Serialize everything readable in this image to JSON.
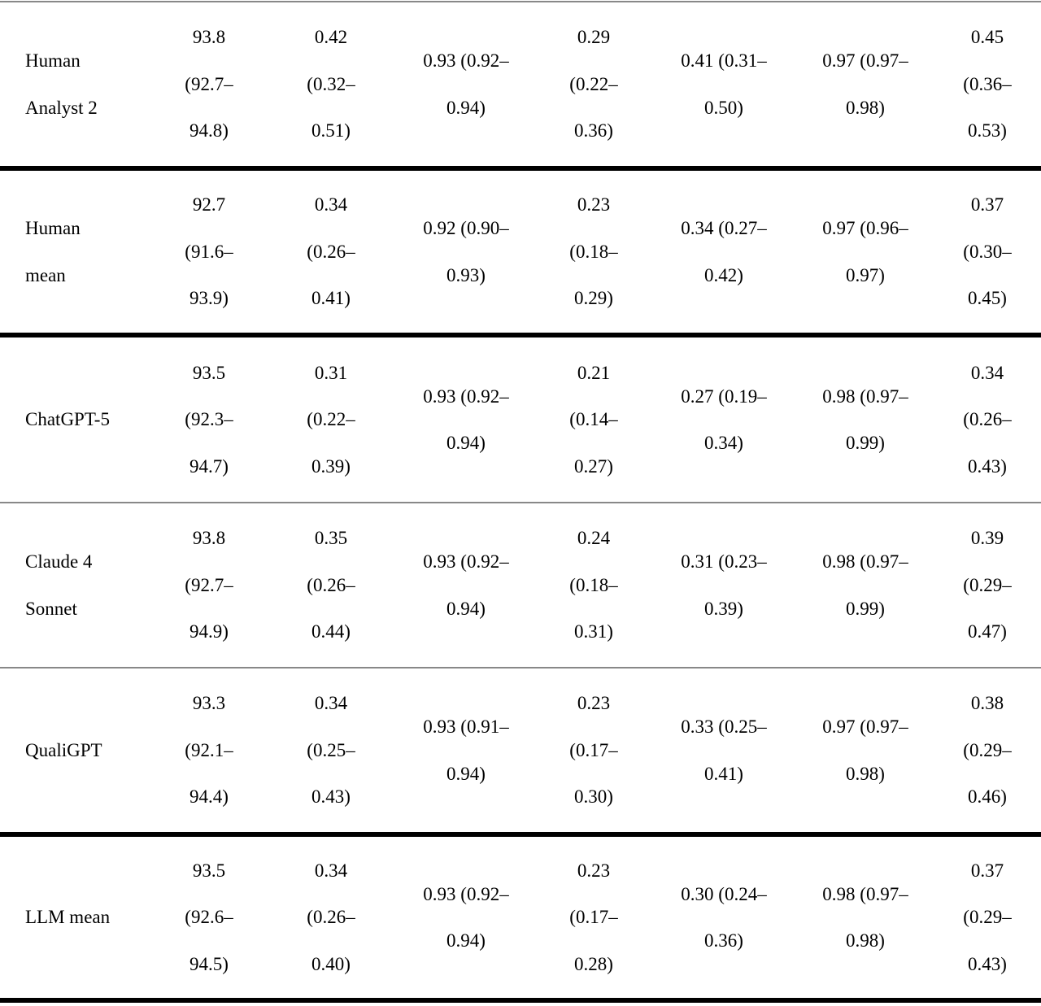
{
  "table": {
    "rows": [
      {
        "label": [
          "Human",
          "Analyst 2"
        ],
        "cells": [
          [
            "93.8",
            "(92.7–",
            "94.8)"
          ],
          [
            "0.42",
            "(0.32–",
            "0.51)"
          ],
          [
            "0.93 (0.92–",
            "0.94)"
          ],
          [
            "0.29",
            "(0.22–",
            "0.36)"
          ],
          [
            "0.41 (0.31–",
            "0.50)"
          ],
          [
            "0.97 (0.97–",
            "0.98)"
          ],
          [
            "0.45",
            "(0.36–",
            "0.53)"
          ]
        ]
      },
      {
        "label": [
          "Human",
          "mean"
        ],
        "cells": [
          [
            "92.7",
            "(91.6–",
            "93.9)"
          ],
          [
            "0.34",
            "(0.26–",
            "0.41)"
          ],
          [
            "0.92 (0.90–",
            "0.93)"
          ],
          [
            "0.23",
            "(0.18–",
            "0.29)"
          ],
          [
            "0.34 (0.27–",
            "0.42)"
          ],
          [
            "0.97 (0.96–",
            "0.97)"
          ],
          [
            "0.37",
            "(0.30–",
            "0.45)"
          ]
        ]
      },
      {
        "label": [
          "ChatGPT-5"
        ],
        "cells": [
          [
            "93.5",
            "(92.3–",
            "94.7)"
          ],
          [
            "0.31",
            "(0.22–",
            "0.39)"
          ],
          [
            "0.93 (0.92–",
            "0.94)"
          ],
          [
            "0.21",
            "(0.14–",
            "0.27)"
          ],
          [
            "0.27 (0.19–",
            "0.34)"
          ],
          [
            "0.98 (0.97–",
            "0.99)"
          ],
          [
            "0.34",
            "(0.26–",
            "0.43)"
          ]
        ]
      },
      {
        "label": [
          "Claude 4",
          "Sonnet"
        ],
        "cells": [
          [
            "93.8",
            "(92.7–",
            "94.9)"
          ],
          [
            "0.35",
            "(0.26–",
            "0.44)"
          ],
          [
            "0.93 (0.92–",
            "0.94)"
          ],
          [
            "0.24",
            "(0.18–",
            "0.31)"
          ],
          [
            "0.31 (0.23–",
            "0.39)"
          ],
          [
            "0.98 (0.97–",
            "0.99)"
          ],
          [
            "0.39",
            "(0.29–",
            "0.47)"
          ]
        ]
      },
      {
        "label": [
          "QualiGPT"
        ],
        "cells": [
          [
            "93.3",
            "(92.1–",
            "94.4)"
          ],
          [
            "0.34",
            "(0.25–",
            "0.43)"
          ],
          [
            "0.93 (0.91–",
            "0.94)"
          ],
          [
            "0.23",
            "(0.17–",
            "0.30)"
          ],
          [
            "0.33 (0.25–",
            "0.41)"
          ],
          [
            "0.97 (0.97–",
            "0.98)"
          ],
          [
            "0.38",
            "(0.29–",
            "0.46)"
          ]
        ]
      },
      {
        "label": [
          "LLM mean"
        ],
        "cells": [
          [
            "93.5",
            "(92.6–",
            "94.5)"
          ],
          [
            "0.34",
            "(0.26–",
            "0.40)"
          ],
          [
            "0.93 (0.92–",
            "0.94)"
          ],
          [
            "0.23",
            "(0.17–",
            "0.28)"
          ],
          [
            "0.30 (0.24–",
            "0.36)"
          ],
          [
            "0.98 (0.97–",
            "0.98)"
          ],
          [
            "0.37",
            "(0.29–",
            "0.43)"
          ]
        ]
      }
    ]
  }
}
